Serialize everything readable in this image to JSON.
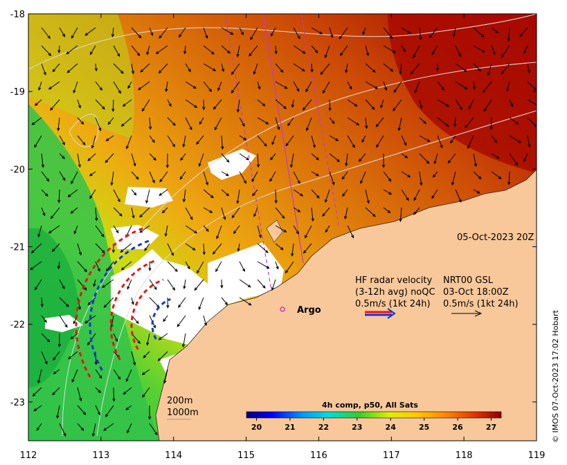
{
  "map": {
    "date_label": "05-Oct-2023 20Z",
    "lon_ticks": [
      "112",
      "113",
      "114",
      "115",
      "116",
      "117",
      "118",
      "119"
    ],
    "lat_ticks": [
      "-18",
      "-19",
      "-20",
      "-21",
      "-22",
      "-23"
    ],
    "lon_range": [
      112,
      119
    ],
    "lat_range": [
      -23.5,
      -18
    ],
    "argo_label": "Argo",
    "hf_radar_line1": "HF radar velocity",
    "hf_radar_line2": "(3-12h avg) noQC",
    "hf_radar_scale": "0.5m/s (1kt 24h)",
    "nrt_line1": "NRT00 GSL",
    "nrt_line2": "03-Oct 18:00Z",
    "nrt_scale": "0.5m/s (1kt 24h)",
    "contour_200": "200m",
    "contour_1000": "1000m",
    "credit": "© IMOS 07-Oct-2023 17:02 Hobart"
  },
  "colorbar": {
    "title": "4h comp, p50, All Sats",
    "ticks": [
      "20",
      "21",
      "22",
      "23",
      "24",
      "25",
      "26",
      "27"
    ],
    "range": [
      19.7,
      27.3
    ]
  },
  "colors": {
    "land": "#f8c89a",
    "cloud": "#ffffff",
    "radar_a": "#ee1111",
    "radar_b": "#1133dd",
    "track": "#cc33cc"
  }
}
